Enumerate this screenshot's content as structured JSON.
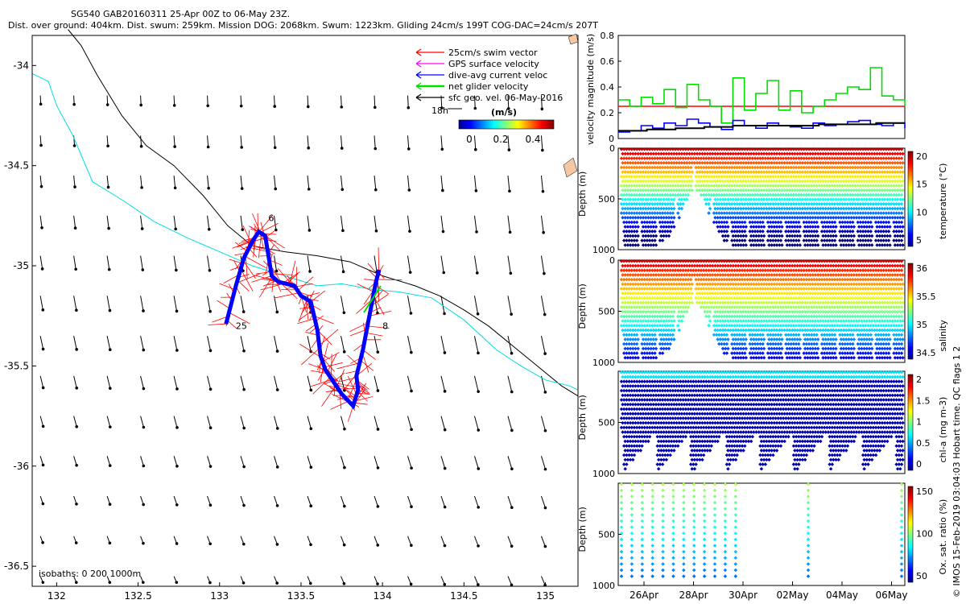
{
  "header": {
    "line1": "SG540 GAB20160311 25-Apr 00Z to 06-May 23Z.",
    "line2": "Dist. over ground: 404km. Dist. swum: 259km. Mission DOG: 2068km. Swum: 1223km. Gliding 24cm/s 199T COG-DAC=24cm/s 207T"
  },
  "side_note": "© IMOS 15-Feb-2019 03:04:03 Hobart time. QC flags 1  2",
  "colors": {
    "swim": "#ff0000",
    "gps": "#ff00ff",
    "dac": "#0000ff",
    "net": "#00dd00",
    "geo": "#000000",
    "isobath": "#00dddd"
  },
  "chart_data": [
    {
      "type": "scatter",
      "name": "map",
      "x_ticks": [
        "132",
        "132.5",
        "133",
        "133.5",
        "134",
        "134.5",
        "135"
      ],
      "y_ticks": [
        "-34",
        "-34.5",
        "-35",
        "-35.5",
        "-36",
        "-36.5"
      ],
      "xlim": [
        131.85,
        135.2
      ],
      "ylim": [
        -36.6,
        -33.85
      ],
      "legend": {
        "placement": "top-right",
        "items": [
          "25cm/s swim vector",
          "GPS surface velocity",
          "dive-avg current veloc",
          "net glider velocity",
          "sfc geo. vel. 06-May-2016"
        ],
        "scale_label": "18h",
        "colorbar_title": "(m/s)",
        "colorbar_ticks": [
          "0",
          "0.2",
          "0.4"
        ]
      },
      "isobath_label": "isobaths: 0   200  1000m",
      "track_labels": [
        {
          "text": "25",
          "lon": 133.08,
          "lat": -35.3
        },
        {
          "text": "6",
          "lon": 133.28,
          "lat": -34.76
        },
        {
          "text": "8",
          "lon": 133.98,
          "lat": -35.3
        }
      ],
      "track": [
        [
          133.04,
          -35.29
        ],
        [
          133.1,
          -35.1
        ],
        [
          133.15,
          -34.96
        ],
        [
          133.2,
          -34.88
        ],
        [
          133.24,
          -34.83
        ],
        [
          133.28,
          -34.85
        ],
        [
          133.3,
          -34.95
        ],
        [
          133.32,
          -35.05
        ],
        [
          133.36,
          -35.08
        ],
        [
          133.46,
          -35.1
        ],
        [
          133.5,
          -35.15
        ],
        [
          133.56,
          -35.18
        ],
        [
          133.6,
          -35.32
        ],
        [
          133.62,
          -35.45
        ],
        [
          133.65,
          -35.52
        ],
        [
          133.7,
          -35.58
        ],
        [
          133.75,
          -35.64
        ],
        [
          133.82,
          -35.7
        ],
        [
          133.85,
          -35.62
        ],
        [
          133.84,
          -35.55
        ],
        [
          133.88,
          -35.42
        ],
        [
          133.92,
          -35.25
        ],
        [
          133.96,
          -35.08
        ],
        [
          133.98,
          -35.02
        ]
      ],
      "coast_1000m": [
        [
          132.07,
          -33.82
        ],
        [
          132.15,
          -33.9
        ],
        [
          132.25,
          -34.05
        ],
        [
          132.4,
          -34.25
        ],
        [
          132.55,
          -34.4
        ],
        [
          132.72,
          -34.5
        ],
        [
          132.9,
          -34.65
        ],
        [
          133.05,
          -34.8
        ],
        [
          133.2,
          -34.9
        ],
        [
          133.4,
          -34.93
        ],
        [
          133.6,
          -34.95
        ],
        [
          133.8,
          -34.98
        ],
        [
          134.0,
          -35.05
        ],
        [
          134.2,
          -35.1
        ],
        [
          134.35,
          -35.15
        ],
        [
          134.5,
          -35.22
        ],
        [
          134.65,
          -35.3
        ],
        [
          134.8,
          -35.4
        ],
        [
          134.95,
          -35.5
        ],
        [
          135.1,
          -35.6
        ],
        [
          135.2,
          -35.65
        ]
      ],
      "coast_200m": [
        [
          131.85,
          -34.04
        ],
        [
          131.95,
          -34.08
        ],
        [
          132.0,
          -34.2
        ],
        [
          132.1,
          -34.35
        ],
        [
          132.22,
          -34.58
        ],
        [
          132.4,
          -34.67
        ],
        [
          132.6,
          -34.78
        ],
        [
          132.8,
          -34.86
        ],
        [
          133.0,
          -34.93
        ],
        [
          133.2,
          -35.0
        ],
        [
          133.4,
          -35.05
        ],
        [
          133.6,
          -35.1
        ],
        [
          133.75,
          -35.09
        ],
        [
          133.95,
          -35.12
        ],
        [
          134.1,
          -35.13
        ],
        [
          134.3,
          -35.16
        ],
        [
          134.5,
          -35.27
        ],
        [
          134.7,
          -35.42
        ],
        [
          134.85,
          -35.5
        ],
        [
          135.0,
          -35.57
        ],
        [
          135.15,
          -35.6
        ],
        [
          135.2,
          -35.62
        ]
      ]
    },
    {
      "type": "line",
      "name": "velocity",
      "ylabel": "velocity magnitude (m/s)",
      "ylim": [
        0,
        0.8
      ],
      "y_ticks": [
        "0",
        "0.2",
        "0.4",
        "0.6",
        "0.8"
      ],
      "reference_line": 0.25,
      "series": [
        {
          "color": "#00dd00",
          "x": [
            0,
            0.04,
            0.08,
            0.12,
            0.16,
            0.2,
            0.24,
            0.28,
            0.32,
            0.36,
            0.4,
            0.44,
            0.48,
            0.52,
            0.56,
            0.6,
            0.64,
            0.68,
            0.72,
            0.76,
            0.8,
            0.84,
            0.88,
            0.92,
            0.96,
            1.0
          ],
          "values": [
            0.3,
            0.25,
            0.32,
            0.27,
            0.38,
            0.24,
            0.42,
            0.3,
            0.25,
            0.12,
            0.47,
            0.22,
            0.35,
            0.45,
            0.22,
            0.37,
            0.2,
            0.25,
            0.3,
            0.35,
            0.4,
            0.38,
            0.55,
            0.33,
            0.3,
            0.25
          ]
        },
        {
          "color": "#0000ff",
          "x": [
            0,
            0.04,
            0.08,
            0.12,
            0.16,
            0.2,
            0.24,
            0.28,
            0.32,
            0.36,
            0.4,
            0.44,
            0.48,
            0.52,
            0.56,
            0.6,
            0.64,
            0.68,
            0.72,
            0.76,
            0.8,
            0.84,
            0.88,
            0.92,
            0.96,
            1.0
          ],
          "values": [
            0.05,
            0.06,
            0.1,
            0.08,
            0.12,
            0.1,
            0.15,
            0.12,
            0.09,
            0.07,
            0.14,
            0.1,
            0.08,
            0.12,
            0.1,
            0.09,
            0.08,
            0.12,
            0.1,
            0.11,
            0.13,
            0.14,
            0.11,
            0.1,
            0.12,
            0.08
          ]
        },
        {
          "color": "#000000",
          "x": [
            0,
            0.1,
            0.2,
            0.3,
            0.4,
            0.5,
            0.6,
            0.7,
            0.8,
            0.9,
            1.0
          ],
          "values": [
            0.06,
            0.07,
            0.08,
            0.09,
            0.1,
            0.1,
            0.1,
            0.11,
            0.11,
            0.12,
            0.12
          ]
        }
      ]
    },
    {
      "type": "heatmap",
      "name": "temperature",
      "ylabel": "Depth (m)",
      "yticks": [
        "0",
        "500",
        "1000"
      ],
      "colorbar_label": "temperature (°C)",
      "colorbar_ticks": [
        "20",
        "15",
        "10",
        "5"
      ]
    },
    {
      "type": "heatmap",
      "name": "salinity",
      "ylabel": "Depth (m)",
      "yticks": [
        "0",
        "500",
        "1000"
      ],
      "colorbar_label": "salinity",
      "colorbar_ticks": [
        "36",
        "35.5",
        "35",
        "34.5"
      ]
    },
    {
      "type": "heatmap",
      "name": "chl",
      "ylabel": "Depth (m)",
      "yticks": [
        "500",
        "1000"
      ],
      "colorbar_label": "chl-a (mg m-3)",
      "colorbar_ticks": [
        "2",
        "1.5",
        "1",
        "0.5",
        "0"
      ]
    },
    {
      "type": "heatmap",
      "name": "oxygen",
      "ylabel": "Depth (m)",
      "yticks": [
        "500",
        "1000"
      ],
      "colorbar_label": "Ox. sat. ratio (%)",
      "colorbar_ticks": [
        "150",
        "100",
        "50"
      ],
      "x_ticks": [
        "26Apr",
        "28Apr",
        "30Apr",
        "02May",
        "04May",
        "06May"
      ]
    }
  ]
}
